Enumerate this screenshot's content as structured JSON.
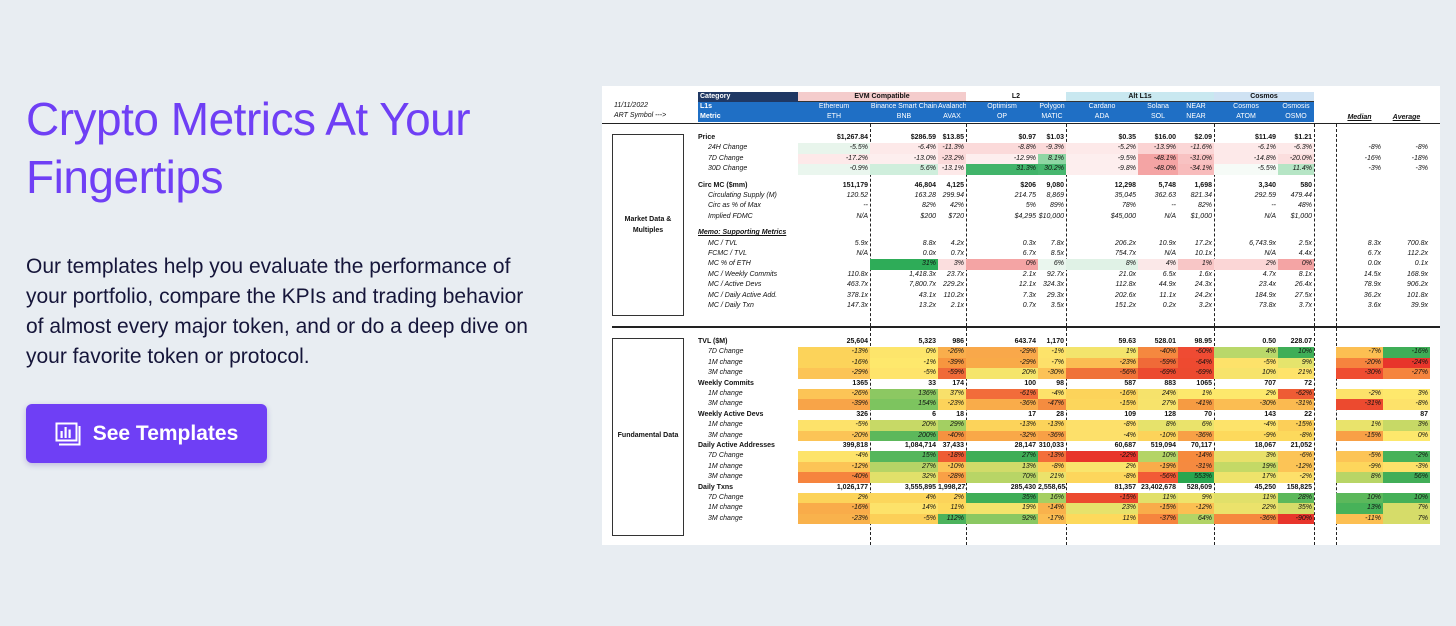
{
  "hero": {
    "title": "Crypto Metrics At Your Fingertips",
    "description": "Our templates help you evaluate the performance of your portfolio, compare the KPIs and trading behavior of almost every major token, and or do a deep dive on your favorite token or protocol.",
    "cta_label": "See Templates",
    "cta_icon": "chart-icon"
  },
  "colors": {
    "accent": "#6f3ff5",
    "text": "#16163a",
    "background": "#e8edf2"
  },
  "sheet": {
    "date": "11/11/2022",
    "art_symbol": "ART Symbol --->",
    "header_labels": [
      "Category",
      "L1s",
      "Metric"
    ],
    "groups": [
      {
        "name": "EVM Compatible",
        "color": "#f4cccc",
        "span": 3
      },
      {
        "name": "L2",
        "color": "#ffffff",
        "span": 2
      },
      {
        "name": "Alt L1s",
        "color": "#c9e8f0",
        "span": 3
      },
      {
        "name": "Cosmos",
        "color": "#cfe2f3",
        "span": 2
      }
    ],
    "tokens": [
      {
        "name": "Ethereum",
        "symbol": "ETH"
      },
      {
        "name": "Binance Smart Chain",
        "symbol": "BNB"
      },
      {
        "name": "Avalanche",
        "symbol": "AVAX"
      },
      {
        "name": "Optimism",
        "symbol": "OP"
      },
      {
        "name": "Polygon",
        "symbol": "MATIC"
      },
      {
        "name": "Cardano",
        "symbol": "ADA"
      },
      {
        "name": "Solana",
        "symbol": "SOL"
      },
      {
        "name": "NEAR",
        "symbol": "NEAR"
      },
      {
        "name": "Cosmos",
        "symbol": "ATOM"
      },
      {
        "name": "Osmosis",
        "symbol": "OSMO"
      }
    ],
    "stat_headers": [
      "Median",
      "Average"
    ],
    "sections": [
      "Market Data & Multiples",
      "Fundamental Data"
    ],
    "rows": [
      {
        "label": "Price",
        "style": "b",
        "vals": [
          "$1,267.84",
          "$286.59",
          "$13.85",
          "$0.97",
          "$1.03",
          "$0.35",
          "$16.00",
          "$2.09",
          "$11.49",
          "$1.21"
        ],
        "stats": [
          "",
          ""
        ]
      },
      {
        "label": "24H Change",
        "style": "i",
        "vals": [
          "-5.5%",
          "-6.4%",
          "-11.3%",
          "-8.8%",
          "-9.3%",
          "-5.2%",
          "-13.9%",
          "-11.6%",
          "-6.1%",
          "-6.3%"
        ],
        "colors": [
          "#e8f5ec",
          "#fde9e9",
          "#fbdada",
          "#fbdada",
          "#fbdada",
          "#fde9e9",
          "#fbd3d3",
          "#fbd6d6",
          "#fde9e9",
          "#fde9e9"
        ],
        "stats": [
          "-8%",
          "-8%"
        ]
      },
      {
        "label": "7D Change",
        "style": "i",
        "vals": [
          "-17.2%",
          "-13.0%",
          "-23.2%",
          "-12.9%",
          "8.1%",
          "-9.5%",
          "-48.1%",
          "-31.0%",
          "-14.8%",
          "-20.0%"
        ],
        "colors": [
          "#fde9e9",
          "#fdeeee",
          "#fbdada",
          "#fdeeee",
          "#8fd6a4",
          "#fdeeee",
          "#f4a4a4",
          "#f8c2c2",
          "#fde9e9",
          "#fbdede"
        ],
        "stats": [
          "-16%",
          "-18%"
        ]
      },
      {
        "label": "30D Change",
        "style": "i",
        "vals": [
          "-0.9%",
          "5.6%",
          "-13.1%",
          "31.3%",
          "30.2%",
          "-9.8%",
          "-48.0%",
          "-34.1%",
          "-5.5%",
          "11.4%"
        ],
        "colors": [
          "#eaf6ee",
          "#cfeedc",
          "#fde9e9",
          "#41b46a",
          "#47b76f",
          "#fdeeee",
          "#f4a4a4",
          "#f8bcbc",
          "#f6fbf7",
          "#b6e5c5"
        ],
        "stats": [
          "-3%",
          "-3%"
        ]
      },
      {
        "label": "Circ MC ($mm)",
        "style": "b",
        "gap": true,
        "vals": [
          "151,179",
          "46,804",
          "4,125",
          "$206",
          "9,080",
          "12,298",
          "5,748",
          "1,698",
          "3,340",
          "580"
        ],
        "stats": [
          "",
          ""
        ]
      },
      {
        "label": "Circulating Supply (M)",
        "style": "i",
        "vals": [
          "120.52",
          "163.28",
          "299.94",
          "214.75",
          "8,869",
          "35,045",
          "362.63",
          "821.34",
          "292.59",
          "479.44"
        ],
        "stats": [
          "",
          ""
        ]
      },
      {
        "label": "Circ as % of Max",
        "style": "i",
        "vals": [
          "--",
          "82%",
          "42%",
          "5%",
          "89%",
          "78%",
          "--",
          "82%",
          "--",
          "48%"
        ],
        "stats": [
          "",
          ""
        ]
      },
      {
        "label": "Implied FDMC",
        "style": "i",
        "vals": [
          "N/A",
          "$200",
          "$720",
          "$4,295",
          "$10,000",
          "$45,000",
          "N/A",
          "$1,000",
          "N/A",
          "$1,000"
        ],
        "stats": [
          "",
          ""
        ]
      },
      {
        "label": "Memo: Supporting Metrics",
        "style": "bu",
        "gap": true,
        "vals": [],
        "stats": [
          "",
          ""
        ]
      },
      {
        "label": "MC / TVL",
        "style": "i",
        "vals": [
          "5.9x",
          "8.8x",
          "4.2x",
          "0.3x",
          "7.8x",
          "206.2x",
          "10.9x",
          "17.2x",
          "6,743.9x",
          "2.5x"
        ],
        "stats": [
          "8.3x",
          "700.8x"
        ]
      },
      {
        "label": "FCMC / TVL",
        "style": "i",
        "vals": [
          "N/A",
          "0.0x",
          "0.7x",
          "6.7x",
          "8.5x",
          "754.7x",
          "N/A",
          "10.1x",
          "N/A",
          "4.4x"
        ],
        "stats": [
          "6.7x",
          "112.2x"
        ]
      },
      {
        "label": "MC % of ETH",
        "style": "i",
        "vals": [
          "",
          "31%",
          "3%",
          "0%",
          "6%",
          "8%",
          "4%",
          "1%",
          "2%",
          "0%"
        ],
        "colors": [
          "",
          "#2eac58",
          "#fbdede",
          "#f4a4a4",
          "#eaf6ee",
          "#e0f2e6",
          "#fbe8e8",
          "#f8c6c6",
          "#fbd6d6",
          "#f4a4a4"
        ],
        "stats": [
          "0.0x",
          "0.1x"
        ]
      },
      {
        "label": "MC / Weekly Commits",
        "style": "i",
        "vals": [
          "110.8x",
          "1,418.3x",
          "23.7x",
          "2.1x",
          "92.7x",
          "21.0x",
          "6.5x",
          "1.6x",
          "4.7x",
          "8.1x"
        ],
        "stats": [
          "14.5x",
          "168.9x"
        ]
      },
      {
        "label": "MC / Active Devs",
        "style": "i",
        "vals": [
          "463.7x",
          "7,800.7x",
          "229.2x",
          "12.1x",
          "324.3x",
          "112.8x",
          "44.9x",
          "24.3x",
          "23.4x",
          "26.4x"
        ],
        "stats": [
          "78.9x",
          "906.2x"
        ]
      },
      {
        "label": "MC / Daily Active Add.",
        "style": "i",
        "vals": [
          "378.1x",
          "43.1x",
          "110.2x",
          "7.3x",
          "29.3x",
          "202.6x",
          "11.1x",
          "24.2x",
          "184.9x",
          "27.5x"
        ],
        "stats": [
          "36.2x",
          "101.8x"
        ]
      },
      {
        "label": "MC / Daily Txn",
        "style": "i",
        "vals": [
          "147.3x",
          "13.2x",
          "2.1x",
          "0.7x",
          "3.5x",
          "151.2x",
          "0.2x",
          "3.2x",
          "73.8x",
          "3.7x"
        ],
        "stats": [
          "3.6x",
          "39.9x"
        ]
      },
      {
        "label": "TVL ($M)",
        "style": "b",
        "section2": true,
        "vals": [
          "25,604",
          "5,323",
          "986",
          "643.74",
          "1,170",
          "59.63",
          "528.01",
          "98.95",
          "0.50",
          "228.07"
        ],
        "stats": [
          "",
          ""
        ]
      },
      {
        "label": "7D Change",
        "style": "i",
        "vals": [
          "-13%",
          "0%",
          "-26%",
          "-29%",
          "-1%",
          "1%",
          "-40%",
          "-60%",
          "4%",
          "10%"
        ],
        "colors": [
          "#fcd35a",
          "#fde56b",
          "#f9ae4c",
          "#f9a84a",
          "#fde36a",
          "#f3e46c",
          "#f5883f",
          "#ef4b33",
          "#b9d86a",
          "#3fae57"
        ],
        "stats": [
          "-7%",
          "-16%"
        ],
        "stat_colors": [
          "#fcbf52",
          "#3fae57"
        ]
      },
      {
        "label": "1M change",
        "style": "i",
        "vals": [
          "-16%",
          "-1%",
          "-39%",
          "-29%",
          "-7%",
          "-23%",
          "-59%",
          "-64%",
          "-5%",
          "9%"
        ],
        "colors": [
          "#fcd35a",
          "#fee86c",
          "#f7963f",
          "#f9aa48",
          "#fde06a",
          "#fbbd52",
          "#f06a38",
          "#ee4a30",
          "#fde26a",
          "#e5e46c"
        ],
        "stats": [
          "-20%",
          "-24%"
        ],
        "stat_colors": [
          "#f6843e",
          "#e8352b"
        ]
      },
      {
        "label": "3M change",
        "style": "i",
        "vals": [
          "-29%",
          "-5%",
          "-59%",
          "20%",
          "-30%",
          "-56%",
          "-69%",
          "-69%",
          "10%",
          "21%"
        ],
        "colors": [
          "#fcc456",
          "#fee46b",
          "#f06a38",
          "#f5e56b",
          "#fcc256",
          "#f07238",
          "#ec4a2f",
          "#ec4a2f",
          "#f7e36b",
          "#fee36a"
        ],
        "stats": [
          "-30%",
          "-27%"
        ],
        "stat_colors": [
          "#ef4d31",
          "#f5843e"
        ]
      },
      {
        "label": "Weekly Commits",
        "style": "b",
        "vals": [
          "1365",
          "33",
          "174",
          "100",
          "98",
          "587",
          "883",
          "1065",
          "707",
          "72"
        ],
        "stats": [
          "",
          ""
        ]
      },
      {
        "label": "1M change",
        "style": "i",
        "vals": [
          "-26%",
          "136%",
          "37%",
          "-61%",
          "-4%",
          "-16%",
          "24%",
          "1%",
          "2%",
          "-62%"
        ],
        "colors": [
          "#fcc456",
          "#8cc862",
          "#f8e06a",
          "#f26c3a",
          "#fde26a",
          "#fcd35a",
          "#f6e26b",
          "#fde86c",
          "#fde86c",
          "#ee5c34"
        ],
        "stats": [
          "-2%",
          "3%"
        ],
        "stat_colors": [
          "#fde26a",
          "#fee86c"
        ]
      },
      {
        "label": "3M change",
        "style": "i",
        "vals": [
          "-39%",
          "154%",
          "-23%",
          "-36%",
          "-47%",
          "-15%",
          "27%",
          "-41%",
          "-30%",
          "-31%"
        ],
        "colors": [
          "#f8a448",
          "#7dc45f",
          "#fcd35a",
          "#f9ac4a",
          "#f48c40",
          "#fcd65c",
          "#f7e36b",
          "#f69b42",
          "#fbbd52",
          "#fbba50"
        ],
        "stats": [
          "-31%",
          "-8%"
        ],
        "stat_colors": [
          "#ec4a2f",
          "#fde26a"
        ]
      },
      {
        "label": "Weekly Active Devs",
        "style": "b",
        "vals": [
          "326",
          "6",
          "18",
          "17",
          "28",
          "109",
          "128",
          "70",
          "143",
          "22"
        ],
        "stats": [
          "",
          "87"
        ]
      },
      {
        "label": "1M change",
        "style": "i",
        "vals": [
          "-5%",
          "20%",
          "29%",
          "-13%",
          "-13%",
          "-8%",
          "8%",
          "6%",
          "-4%",
          "-15%"
        ],
        "colors": [
          "#fde26a",
          "#c7d966",
          "#a3cf62",
          "#fcd35a",
          "#fcd35a",
          "#fde06a",
          "#e6e26b",
          "#eae36b",
          "#fde36a",
          "#fccf58"
        ],
        "stats": [
          "1%",
          "3%"
        ],
        "stat_colors": [
          "#e9e36b",
          "#c7d966"
        ]
      },
      {
        "label": "3M change",
        "style": "i",
        "vals": [
          "-20%",
          "200%",
          "-40%",
          "-32%",
          "-36%",
          "-4%",
          "-10%",
          "-36%",
          "-9%",
          "-8%"
        ],
        "colors": [
          "#fcc456",
          "#5cb85b",
          "#f59240",
          "#f9a848",
          "#f8a046",
          "#fde06a",
          "#fcd35a",
          "#f8a046",
          "#fdd95c",
          "#fdd95c"
        ],
        "stats": [
          "-15%",
          "0%"
        ],
        "stat_colors": [
          "#f8a046",
          "#fde86c"
        ]
      },
      {
        "label": "Daily Active Addresses",
        "style": "b",
        "vals": [
          "399,818",
          "1,084,714",
          "37,433",
          "28,147",
          "310,033",
          "60,687",
          "519,094",
          "70,117",
          "18,067",
          "21,052"
        ],
        "stats": [
          "",
          ""
        ]
      },
      {
        "label": "7D Change",
        "style": "i",
        "vals": [
          "-4%",
          "15%",
          "-18%",
          "27%",
          "-13%",
          "-22%",
          "10%",
          "-14%",
          "3%",
          "-6%"
        ],
        "colors": [
          "#fde36a",
          "#55b65c",
          "#ee5c34",
          "#3fae57",
          "#f36e3a",
          "#e8352b",
          "#b4d466",
          "#f68a3e",
          "#e8e06a",
          "#fcc456"
        ],
        "stats": [
          "-5%",
          "-2%"
        ],
        "stat_colors": [
          "#fcc456",
          "#47b259"
        ]
      },
      {
        "label": "1M change",
        "style": "i",
        "vals": [
          "-12%",
          "27%",
          "-10%",
          "13%",
          "-8%",
          "2%",
          "-19%",
          "-31%",
          "19%",
          "-12%"
        ],
        "colors": [
          "#fcc456",
          "#b6d466",
          "#fcc456",
          "#d1db69",
          "#fdce58",
          "#f9e56c",
          "#f9ac4a",
          "#f58a40",
          "#c4d966",
          "#fcc456"
        ],
        "stats": [
          "-9%",
          "-3%"
        ],
        "stat_colors": [
          "#fdd65c",
          "#fde26a"
        ]
      },
      {
        "label": "3M change",
        "style": "i",
        "vals": [
          "-40%",
          "32%",
          "-28%",
          "70%",
          "21%",
          "-8%",
          "-56%",
          "553%",
          "17%",
          "-2%"
        ],
        "colors": [
          "#f6843e",
          "#e1e06a",
          "#f9a046",
          "#b8d566",
          "#ebe26b",
          "#fdd65c",
          "#f25a36",
          "#29a64f",
          "#eee36b",
          "#fde06a"
        ],
        "stats": [
          "8%",
          "56%"
        ],
        "stat_colors": [
          "#b8d566",
          "#41ae58"
        ]
      },
      {
        "label": "Daily Txns",
        "style": "b",
        "vals": [
          "1,026,177",
          "3,555,895",
          "1,998,271",
          "285,430",
          "2,558,654",
          "81,357",
          "23,402,678",
          "528,609",
          "45,250",
          "158,825"
        ],
        "stats": [
          "",
          ""
        ]
      },
      {
        "label": "7D Change",
        "style": "i",
        "vals": [
          "2%",
          "4%",
          "2%",
          "35%",
          "16%",
          "-15%",
          "11%",
          "9%",
          "11%",
          "28%"
        ],
        "colors": [
          "#fcd35a",
          "#fcd65c",
          "#fcd35a",
          "#3fae57",
          "#a5cf62",
          "#ec4a2f",
          "#e1e06a",
          "#eee36b",
          "#e1e06a",
          "#5cb85b"
        ],
        "stats": [
          "10%",
          "10%"
        ],
        "stat_colors": [
          "#5cb85b",
          "#45b058"
        ]
      },
      {
        "label": "1M change",
        "style": "i",
        "vals": [
          "-16%",
          "14%",
          "11%",
          "19%",
          "-14%",
          "23%",
          "-15%",
          "-12%",
          "22%",
          "35%"
        ],
        "colors": [
          "#f9ac4a",
          "#fde26a",
          "#fdd95c",
          "#f5e36b",
          "#f9b24c",
          "#e6e26b",
          "#f9ac4a",
          "#fbbf52",
          "#ebe26b",
          "#d6dc69"
        ],
        "stats": [
          "13%",
          "7%"
        ],
        "stat_colors": [
          "#47b259",
          "#d6dc69"
        ]
      },
      {
        "label": "3M change",
        "style": "i",
        "vals": [
          "-23%",
          "-5%",
          "112%",
          "92%",
          "-17%",
          "11%",
          "-37%",
          "64%",
          "-36%",
          "-90%"
        ],
        "colors": [
          "#f9b24c",
          "#fccf58",
          "#4cb35c",
          "#8bc862",
          "#fbbd52",
          "#fdd95c",
          "#f6843e",
          "#b2d466",
          "#f6883e",
          "#e8352b"
        ],
        "stats": [
          "-11%",
          "7%"
        ],
        "stat_colors": [
          "#fcbf52",
          "#d6dc69"
        ]
      }
    ]
  }
}
